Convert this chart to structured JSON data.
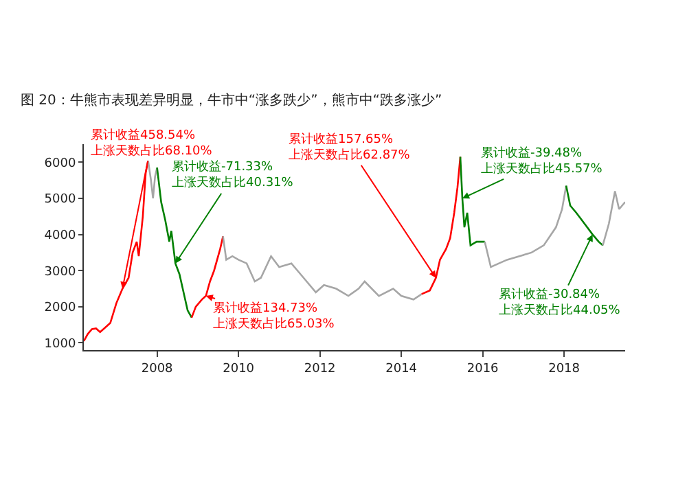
{
  "chart_data": {
    "type": "line",
    "title": "图 20：牛熊市表现差异明显，牛市中“涨多跌少”，熊市中“跌多涨少”",
    "series": [
      {
        "color": "#ff0000",
        "x": [
          2006.2,
          2006.3,
          2006.4,
          2006.5,
          2006.6,
          2006.7,
          2006.85,
          2007.0,
          2007.15,
          2007.3,
          2007.4,
          2007.5,
          2007.55,
          2007.65,
          2007.72,
          2007.78
        ],
        "values": [
          1050,
          1250,
          1380,
          1400,
          1300,
          1400,
          1550,
          2100,
          2500,
          2800,
          3500,
          3800,
          3400,
          4500,
          5700,
          6040
        ]
      },
      {
        "color": "#a6a6a6",
        "x": [
          2007.78,
          2007.85,
          2007.9,
          2007.95,
          2008.0
        ],
        "values": [
          6040,
          5500,
          5000,
          5600,
          5850
        ]
      },
      {
        "color": "#008000",
        "x": [
          2008.0,
          2008.1,
          2008.2,
          2008.3,
          2008.35,
          2008.45,
          2008.55,
          2008.65,
          2008.75,
          2008.85
        ],
        "values": [
          5850,
          4900,
          4400,
          3800,
          4100,
          3200,
          2900,
          2400,
          1900,
          1700
        ]
      },
      {
        "color": "#ff0000",
        "x": [
          2008.85,
          2008.95,
          2009.1,
          2009.2,
          2009.3,
          2009.4,
          2009.55,
          2009.62
        ],
        "values": [
          1700,
          2000,
          2200,
          2300,
          2700,
          3000,
          3600,
          3950
        ]
      },
      {
        "color": "#a6a6a6",
        "x": [
          2009.62,
          2009.7,
          2009.85,
          2010.0,
          2010.2,
          2010.4,
          2010.55,
          2010.8,
          2011.0,
          2011.3,
          2011.6,
          2011.9,
          2012.1,
          2012.4,
          2012.7,
          2012.95,
          2013.1,
          2013.45,
          2013.8,
          2014.0,
          2014.3,
          2014.5
        ],
        "values": [
          3950,
          3300,
          3400,
          3300,
          3200,
          2700,
          2800,
          3400,
          3100,
          3200,
          2800,
          2400,
          2600,
          2500,
          2300,
          2500,
          2700,
          2300,
          2500,
          2300,
          2200,
          2350
        ]
      },
      {
        "color": "#ff0000",
        "x": [
          2014.5,
          2014.7,
          2014.85,
          2014.95,
          2015.1,
          2015.2,
          2015.3,
          2015.38,
          2015.45
        ],
        "values": [
          2350,
          2450,
          2800,
          3300,
          3600,
          3900,
          4600,
          5300,
          6150
        ]
      },
      {
        "color": "#008000",
        "x": [
          2015.45,
          2015.5,
          2015.55,
          2015.62,
          2015.7,
          2015.85,
          2015.95,
          2016.05
        ],
        "values": [
          6150,
          5000,
          4200,
          4600,
          3700,
          3800,
          3800,
          3800
        ]
      },
      {
        "color": "#a6a6a6",
        "x": [
          2016.05,
          2016.2,
          2016.4,
          2016.6,
          2016.9,
          2017.2,
          2017.5,
          2017.8,
          2017.95,
          2018.05
        ],
        "values": [
          3800,
          3100,
          3200,
          3300,
          3400,
          3500,
          3700,
          4200,
          4700,
          5350
        ]
      },
      {
        "color": "#008000",
        "x": [
          2018.05,
          2018.15,
          2018.3,
          2018.5,
          2018.7,
          2018.85,
          2018.95
        ],
        "values": [
          5350,
          4800,
          4600,
          4300,
          4000,
          3800,
          3700
        ]
      },
      {
        "color": "#a6a6a6",
        "x": [
          2018.95,
          2019.1,
          2019.25,
          2019.35,
          2019.5
        ],
        "values": [
          3700,
          4300,
          5200,
          4700,
          4900
        ]
      }
    ],
    "annotations": [
      {
        "text": "累计收益458.54%\n上涨天数占比68.10%",
        "x": 2007.15,
        "y": 2500
      },
      {
        "text": "累计收益-71.33%\n上涨天数占比40.31%",
        "x": 2008.45,
        "y": 3200
      },
      {
        "text": "累计收益134.73%\n上涨天数占比65.03%",
        "x": 2009.2,
        "y": 2300
      },
      {
        "text": "累计收益157.65%\n上涨天数占比62.87%",
        "x": 2014.85,
        "y": 2800
      },
      {
        "text": "累计收益-39.48%\n上涨天数占比45.57%",
        "x": 2015.5,
        "y": 5000
      },
      {
        "text": "累计收益-30.84%\n上涨天数占比44.05%",
        "x": 2018.7,
        "y": 4000
      }
    ],
    "xlim": [
      2006.2,
      2019.5
    ],
    "xticks": [
      2008,
      2010,
      2012,
      2014,
      2016,
      2018
    ],
    "ylim": [
      800,
      6500
    ],
    "yticks": [
      1000,
      2000,
      3000,
      4000,
      5000,
      6000
    ],
    "grid": false,
    "marker": "none",
    "line_style": "solid"
  }
}
